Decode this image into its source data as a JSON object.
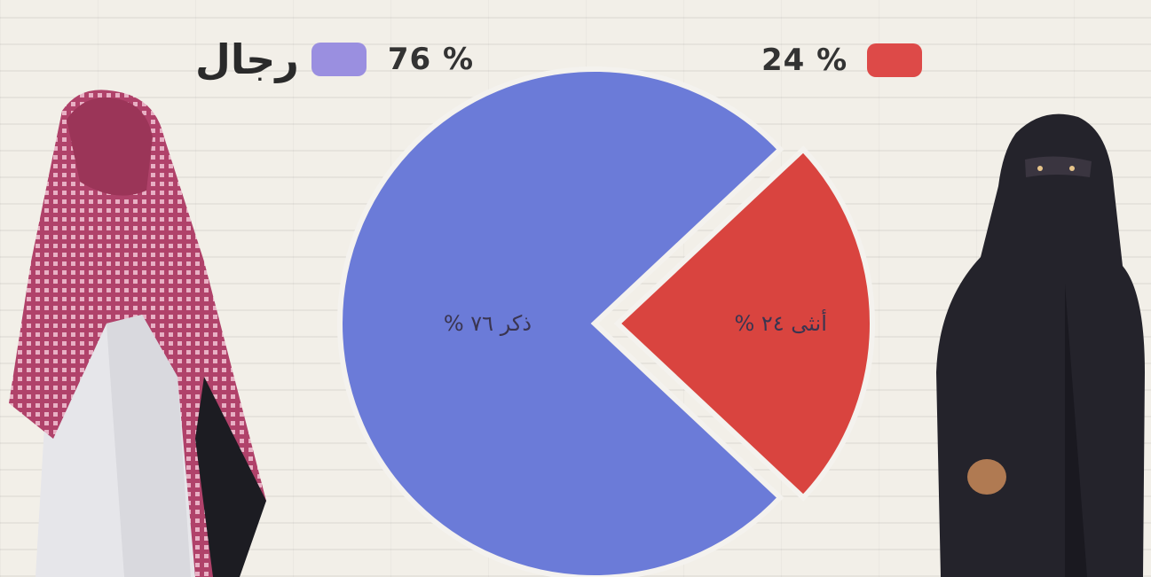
{
  "legend": {
    "men": {
      "percent": "76 %",
      "label": "رجال"
    },
    "women": {
      "percent": "24 %"
    }
  },
  "colors": {
    "men": "#6b7bd8",
    "women": "#d9443f",
    "legend_men": "#9a8fe0",
    "legend_women": "#dd4a48"
  },
  "illustrations": {
    "left": "man-in-keffiyeh-photo",
    "right": "woman-in-niqab-photo"
  },
  "chart_data": {
    "type": "pie",
    "categories": [
      "ذكر",
      "أنثى"
    ],
    "values": [
      76,
      24
    ],
    "slice_labels": [
      "ذكر ٧٦ %",
      "أنثى ٢٤ %"
    ],
    "exploded": "أنثى"
  }
}
